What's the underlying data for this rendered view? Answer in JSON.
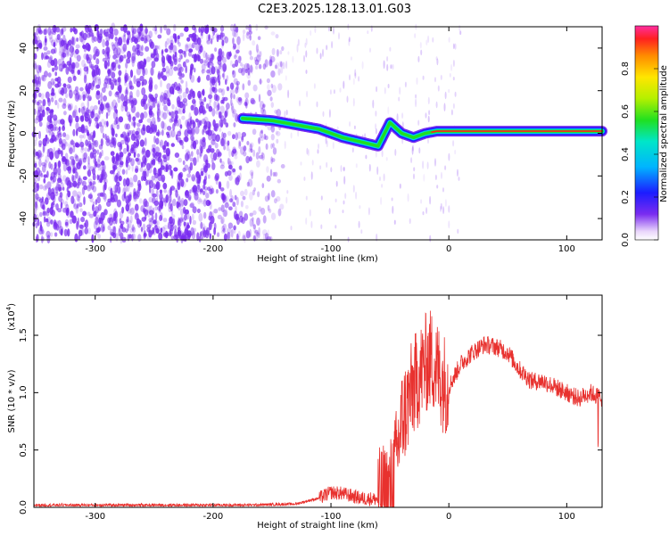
{
  "title": "C2E3.2025.128.13.01.G03",
  "colors": {
    "snr_line": "#e8312e",
    "spectrogram_scatter": "#7a2cf0",
    "frame": "#000000"
  },
  "chart_data": [
    {
      "type": "heatmap",
      "title": "C2E3.2025.128.13.01.G03",
      "xlabel": "Height of straight line (km)",
      "ylabel": "Frequency (Hz)",
      "xlim": [
        -352,
        130
      ],
      "ylim": [
        -50,
        50
      ],
      "xticks": [
        -300,
        -200,
        -100,
        0,
        100
      ],
      "yticks": [
        -40,
        -20,
        0,
        20,
        40
      ],
      "colorbar": {
        "label": "Normalized spectral amplitude",
        "range": [
          0,
          1
        ],
        "ticks": [
          "0.0",
          "0.2",
          "0.4",
          "0.6",
          "0.8"
        ],
        "colormap": "rainbow"
      },
      "doppler_track": {
        "x": [
          -175,
          -150,
          -130,
          -110,
          -90,
          -75,
          -60,
          -50,
          -40,
          -30,
          -20,
          -10,
          0,
          20,
          50,
          80,
          100,
          130
        ],
        "y": [
          7,
          6,
          4,
          2,
          -2,
          -4,
          -6,
          5,
          0,
          -2,
          0,
          1,
          1,
          1,
          1,
          1,
          1,
          1
        ]
      },
      "grid": false
    },
    {
      "type": "line",
      "xlabel": "Height of straight line (km)",
      "ylabel": "SNR (10 * v/v)",
      "y_multiplier": "(x10",
      "y_exponent": "4",
      "y_multiplier_close": ")",
      "xlim": [
        -352,
        130
      ],
      "ylim": [
        0,
        1.85
      ],
      "xticks": [
        -300,
        -200,
        -100,
        0,
        100
      ],
      "yticks": [
        "0.0",
        "0.5",
        "1.0",
        "1.5"
      ],
      "envelope": {
        "x": [
          -352,
          -170,
          -130,
          -110,
          -100,
          -90,
          -75,
          -60,
          -50,
          -45,
          -40,
          -35,
          -30,
          -25,
          -20,
          -15,
          -10,
          -5,
          0,
          10,
          20,
          30,
          40,
          50,
          60,
          70,
          80,
          90,
          100,
          110,
          120,
          130
        ],
        "y": [
          0.02,
          0.02,
          0.03,
          0.08,
          0.13,
          0.12,
          0.08,
          0.07,
          0.15,
          0.4,
          0.75,
          0.9,
          1.05,
          1.15,
          1.25,
          1.3,
          1.2,
          1.1,
          1.05,
          1.25,
          1.35,
          1.42,
          1.4,
          1.35,
          1.2,
          1.1,
          1.1,
          1.05,
          1.0,
          0.95,
          1.0,
          0.95
        ]
      },
      "grid": false
    }
  ]
}
